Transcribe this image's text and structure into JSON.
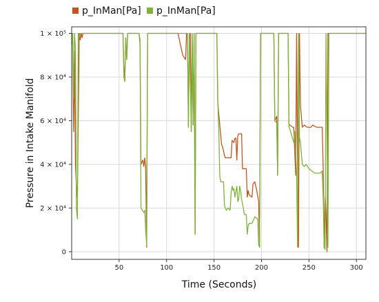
{
  "chart_data": {
    "type": "line",
    "xlabel": "Time (Seconds)",
    "ylabel": "Pressure in Intake Manifold",
    "xlim": [
      0,
      310
    ],
    "ylim": [
      -3500,
      103000
    ],
    "x_ticks": [
      50,
      100,
      150,
      200,
      250,
      300
    ],
    "y_ticks": [
      {
        "value": 0,
        "label": "0"
      },
      {
        "value": 20000,
        "label": "2 × 10⁴"
      },
      {
        "value": 40000,
        "label": "4 × 10⁴"
      },
      {
        "value": 60000,
        "label": "6 × 10⁴"
      },
      {
        "value": 80000,
        "label": "8 × 10⁴"
      },
      {
        "value": 100000,
        "label": "1 × 10⁵"
      }
    ],
    "grid": true,
    "legend_position": "top",
    "series": [
      {
        "name": "p_InMan[Pa]",
        "color": "#c0561e",
        "points": [
          [
            0,
            95000
          ],
          [
            1,
            100000
          ],
          [
            2,
            55000
          ],
          [
            3,
            92000
          ],
          [
            4,
            40000
          ],
          [
            5,
            30000
          ],
          [
            6,
            25000
          ],
          [
            7,
            60000
          ],
          [
            8,
            100000
          ],
          [
            9,
            97000
          ],
          [
            10,
            100000
          ],
          [
            11,
            98000
          ],
          [
            12,
            100000
          ],
          [
            25,
            100000
          ],
          [
            48,
            100000
          ],
          [
            54,
            100000
          ],
          [
            55,
            85000
          ],
          [
            56,
            78000
          ],
          [
            57,
            98000
          ],
          [
            58,
            88000
          ],
          [
            59,
            100000
          ],
          [
            71,
            100000
          ],
          [
            72,
            95000
          ],
          [
            73,
            40000
          ],
          [
            75,
            42000
          ],
          [
            76,
            39000
          ],
          [
            77,
            43000
          ],
          [
            78,
            39000
          ],
          [
            79,
            2000
          ],
          [
            80,
            100000
          ],
          [
            108,
            100000
          ],
          [
            112,
            100000
          ],
          [
            117,
            90000
          ],
          [
            120,
            88000
          ],
          [
            121,
            100000
          ],
          [
            122,
            100000
          ],
          [
            123,
            57000
          ],
          [
            124,
            100000
          ],
          [
            125,
            100000
          ],
          [
            126,
            55000
          ],
          [
            127,
            100000
          ],
          [
            128,
            58000
          ],
          [
            129,
            100000
          ],
          [
            130,
            8000
          ],
          [
            131,
            100000
          ],
          [
            133,
            100000
          ],
          [
            142,
            100000
          ],
          [
            153,
            100000
          ],
          [
            154,
            68000
          ],
          [
            155,
            63000
          ],
          [
            158,
            49000
          ],
          [
            159,
            48000
          ],
          [
            161,
            44000
          ],
          [
            162,
            43000
          ],
          [
            168,
            43000
          ],
          [
            169,
            51000
          ],
          [
            171,
            50000
          ],
          [
            172,
            52000
          ],
          [
            173,
            52000
          ],
          [
            174,
            42000
          ],
          [
            175,
            53000
          ],
          [
            176,
            54000
          ],
          [
            179,
            54000
          ],
          [
            180,
            38000
          ],
          [
            181,
            38000
          ],
          [
            184,
            38000
          ],
          [
            185,
            25000
          ],
          [
            186,
            28000
          ],
          [
            187,
            26000
          ],
          [
            190,
            25000
          ],
          [
            191,
            31000
          ],
          [
            193,
            32000
          ],
          [
            195,
            28000
          ],
          [
            197,
            23000
          ],
          [
            198,
            2000
          ],
          [
            199,
            100000
          ],
          [
            205,
            100000
          ],
          [
            213,
            100000
          ],
          [
            214,
            60000
          ],
          [
            216,
            62000
          ],
          [
            217,
            35000
          ],
          [
            218,
            100000
          ],
          [
            225,
            100000
          ],
          [
            228,
            100000
          ],
          [
            229,
            58000
          ],
          [
            230,
            58000
          ],
          [
            233,
            57000
          ],
          [
            234,
            57000
          ],
          [
            236,
            35000
          ],
          [
            237,
            100000
          ],
          [
            238,
            42000
          ],
          [
            239,
            2000
          ],
          [
            240,
            100000
          ],
          [
            241,
            67000
          ],
          [
            243,
            57000
          ],
          [
            245,
            58000
          ],
          [
            248,
            57000
          ],
          [
            252,
            57000
          ],
          [
            254,
            58000
          ],
          [
            258,
            57000
          ],
          [
            261,
            57000
          ],
          [
            264,
            57000
          ],
          [
            265,
            38000
          ],
          [
            266,
            2000
          ],
          [
            267,
            25000
          ],
          [
            268,
            18000
          ],
          [
            269,
            0
          ],
          [
            270,
            100000
          ],
          [
            275,
            100000
          ],
          [
            290,
            100000
          ],
          [
            300,
            100000
          ],
          [
            310,
            100000
          ]
        ]
      },
      {
        "name": "p_InMan[Pa]",
        "color": "#7eb33b",
        "points": [
          [
            0,
            95000
          ],
          [
            1,
            100000
          ],
          [
            2,
            70000
          ],
          [
            3,
            100000
          ],
          [
            4,
            93000
          ],
          [
            5,
            20000
          ],
          [
            6,
            15000
          ],
          [
            7,
            100000
          ],
          [
            8,
            98000
          ],
          [
            9,
            100000
          ],
          [
            12,
            100000
          ],
          [
            25,
            100000
          ],
          [
            48,
            100000
          ],
          [
            54,
            100000
          ],
          [
            55,
            80000
          ],
          [
            56,
            78000
          ],
          [
            57,
            98000
          ],
          [
            58,
            88000
          ],
          [
            59,
            100000
          ],
          [
            71,
            100000
          ],
          [
            72,
            97000
          ],
          [
            73,
            20000
          ],
          [
            76,
            18000
          ],
          [
            77,
            19000
          ],
          [
            78,
            10000
          ],
          [
            79,
            3000
          ],
          [
            80,
            100000
          ],
          [
            108,
            100000
          ],
          [
            112,
            100000
          ],
          [
            120,
            100000
          ],
          [
            121,
            100000
          ],
          [
            122,
            100000
          ],
          [
            123,
            57000
          ],
          [
            124,
            100000
          ],
          [
            126,
            55000
          ],
          [
            127,
            100000
          ],
          [
            128,
            58000
          ],
          [
            129,
            100000
          ],
          [
            130,
            8000
          ],
          [
            131,
            100000
          ],
          [
            133,
            100000
          ],
          [
            142,
            100000
          ],
          [
            153,
            100000
          ],
          [
            154,
            68000
          ],
          [
            155,
            56000
          ],
          [
            156,
            35000
          ],
          [
            157,
            32000
          ],
          [
            160,
            32000
          ],
          [
            161,
            21000
          ],
          [
            163,
            19000
          ],
          [
            165,
            20000
          ],
          [
            167,
            19000
          ],
          [
            168,
            27000
          ],
          [
            169,
            30000
          ],
          [
            170,
            28000
          ],
          [
            171,
            29000
          ],
          [
            172,
            25000
          ],
          [
            174,
            30000
          ],
          [
            175,
            23000
          ],
          [
            176,
            24000
          ],
          [
            177,
            30000
          ],
          [
            178,
            28000
          ],
          [
            179,
            24000
          ],
          [
            180,
            22000
          ],
          [
            182,
            17000
          ],
          [
            184,
            17000
          ],
          [
            185,
            8000
          ],
          [
            186,
            12000
          ],
          [
            187,
            13000
          ],
          [
            190,
            13000
          ],
          [
            193,
            16000
          ],
          [
            196,
            15000
          ],
          [
            197,
            3000
          ],
          [
            198,
            2000
          ],
          [
            199,
            100000
          ],
          [
            205,
            100000
          ],
          [
            213,
            100000
          ],
          [
            214,
            60000
          ],
          [
            216,
            59000
          ],
          [
            217,
            35000
          ],
          [
            218,
            100000
          ],
          [
            225,
            100000
          ],
          [
            228,
            100000
          ],
          [
            229,
            57000
          ],
          [
            230,
            56000
          ],
          [
            234,
            50000
          ],
          [
            235,
            55000
          ],
          [
            237,
            36000
          ],
          [
            238,
            2000
          ],
          [
            239,
            100000
          ],
          [
            240,
            52000
          ],
          [
            241,
            50000
          ],
          [
            243,
            40000
          ],
          [
            245,
            39000
          ],
          [
            247,
            40000
          ],
          [
            250,
            38000
          ],
          [
            253,
            37000
          ],
          [
            256,
            36000
          ],
          [
            262,
            36000
          ],
          [
            264,
            37000
          ],
          [
            265,
            25000
          ],
          [
            266,
            2000
          ],
          [
            267,
            1000
          ],
          [
            268,
            100000
          ],
          [
            270,
            2000
          ],
          [
            271,
            100000
          ],
          [
            275,
            100000
          ],
          [
            290,
            100000
          ],
          [
            300,
            100000
          ],
          [
            310,
            100000
          ]
        ]
      }
    ]
  }
}
